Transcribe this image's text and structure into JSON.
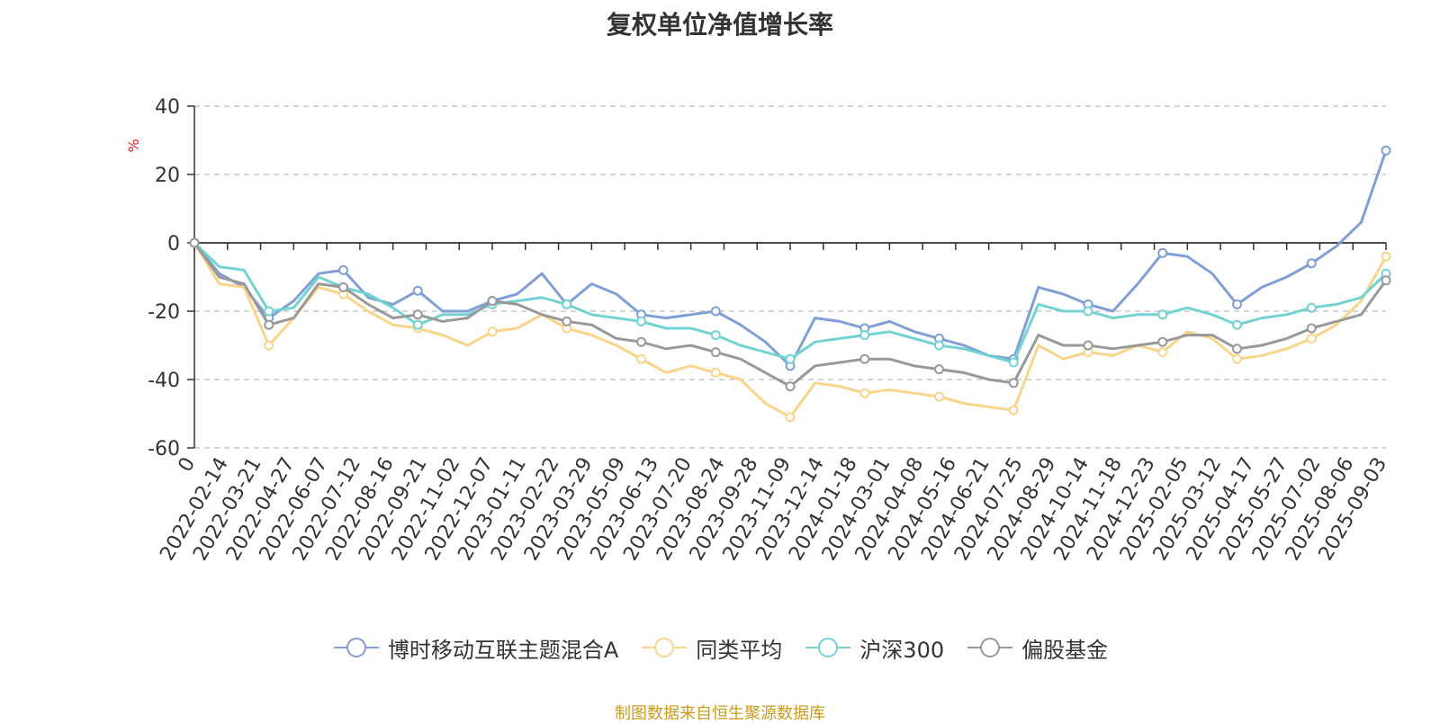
{
  "chart_data": {
    "type": "line",
    "title": "复权单位净值增长率",
    "y_unit": "%",
    "ylim": [
      -60,
      40
    ],
    "y_ticks": [
      40,
      20,
      0,
      -20,
      -40,
      -60
    ],
    "x_tick_labels": [
      "0",
      "2022-02-14",
      "2022-03-21",
      "2022-04-27",
      "2022-06-07",
      "2022-07-12",
      "2022-08-16",
      "2022-09-21",
      "2022-11-02",
      "2022-12-07",
      "2023-01-11",
      "2023-02-22",
      "2023-03-29",
      "2023-05-09",
      "2023-06-13",
      "2023-07-20",
      "2023-08-24",
      "2023-09-28",
      "2023-11-09",
      "2023-12-14",
      "2024-01-18",
      "2024-03-01",
      "2024-04-08",
      "2024-05-16",
      "2024-06-21",
      "2024-07-25",
      "2024-08-29",
      "2024-10-14",
      "2024-11-18",
      "2024-12-23",
      "2025-02-05",
      "2025-03-12",
      "2025-04-17",
      "2025-05-27",
      "2025-07-02",
      "2025-08-06",
      "2025-09-03"
    ],
    "series": [
      {
        "name": "博时移动互联主题混合A",
        "color": "#7f9fd6",
        "values": [
          0,
          -9,
          -13,
          -22,
          -17,
          -9,
          -8,
          -16,
          -18,
          -14,
          -20,
          -20,
          -17,
          -15,
          -9,
          -18,
          -12,
          -15,
          -21,
          -22,
          -21,
          -20,
          -24,
          -29,
          -36,
          -22,
          -23,
          -25,
          -23,
          -26,
          -28,
          -30,
          -33,
          -34,
          -13,
          -15,
          -18,
          -20,
          -12,
          -3,
          -4,
          -9,
          -18,
          -13,
          -10,
          -6,
          -1,
          6,
          27
        ]
      },
      {
        "name": "同类平均",
        "color": "#f9d48a",
        "values": [
          0,
          -12,
          -13,
          -30,
          -22,
          -13,
          -15,
          -20,
          -24,
          -25,
          -27,
          -30,
          -26,
          -25,
          -21,
          -25,
          -27,
          -30,
          -34,
          -38,
          -36,
          -38,
          -40,
          -47,
          -51,
          -41,
          -42,
          -44,
          -43,
          -44,
          -45,
          -47,
          -48,
          -49,
          -30,
          -34,
          -32,
          -33,
          -30,
          -32,
          -26,
          -28,
          -34,
          -33,
          -31,
          -28,
          -24,
          -17,
          -4
        ]
      },
      {
        "name": "沪深300",
        "color": "#73d3d3",
        "values": [
          0,
          -7,
          -8,
          -20,
          -19,
          -10,
          -13,
          -15,
          -19,
          -24,
          -21,
          -21,
          -18,
          -17,
          -16,
          -18,
          -21,
          -22,
          -23,
          -25,
          -25,
          -27,
          -30,
          -32,
          -34,
          -29,
          -28,
          -27,
          -26,
          -28,
          -30,
          -31,
          -33,
          -35,
          -18,
          -20,
          -20,
          -22,
          -21,
          -21,
          -19,
          -21,
          -24,
          -22,
          -21,
          -19,
          -18,
          -16,
          -9
        ]
      },
      {
        "name": "偏股基金",
        "color": "#999999",
        "values": [
          0,
          -10,
          -12,
          -24,
          -22,
          -12,
          -13,
          -18,
          -22,
          -21,
          -23,
          -22,
          -17,
          -18,
          -21,
          -23,
          -24,
          -28,
          -29,
          -31,
          -30,
          -32,
          -34,
          -38,
          -42,
          -36,
          -35,
          -34,
          -34,
          -36,
          -37,
          -38,
          -40,
          -41,
          -27,
          -30,
          -30,
          -31,
          -30,
          -29,
          -27,
          -27,
          -31,
          -30,
          -28,
          -25,
          -23,
          -21,
          -11
        ]
      }
    ],
    "grid": true,
    "legend_position": "bottom"
  },
  "footer": {
    "source": "制图数据来自恒生聚源数据库"
  }
}
